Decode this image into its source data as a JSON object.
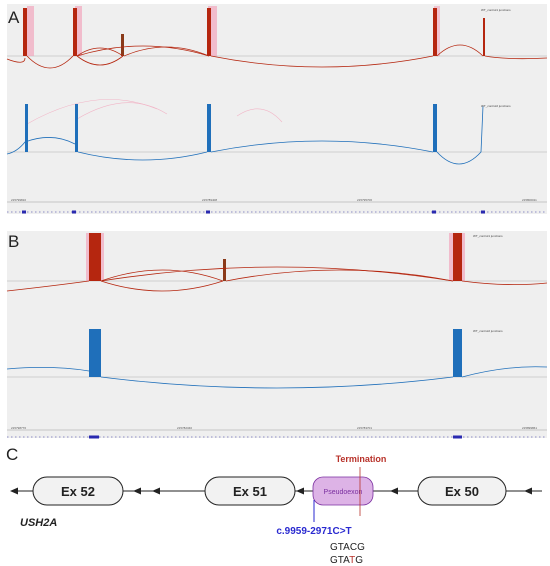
{
  "panels": {
    "a": {
      "letter": "A",
      "track_top_label": "WT_control1 junctions",
      "track_bottom_label": "WT_control2 junctions",
      "ticks": [
        "215799810",
        "215789408",
        "215795706",
        "215800011"
      ]
    },
    "b": {
      "letter": "B",
      "track_top_label": "WT_control1 junctions",
      "track_bottom_label": "WT_control2 junctions",
      "ticks": [
        "215798776",
        "215782340",
        "215783701",
        "215899861"
      ]
    },
    "c": {
      "letter": "C",
      "gene": "USH2A",
      "exons": [
        {
          "label": "Ex 52"
        },
        {
          "label": "Ex 51"
        },
        {
          "label": "Pseudoexon"
        },
        {
          "label": "Ex 50"
        }
      ],
      "termination_label": "Termination",
      "variant_label": "c.9959-2971C>T",
      "seq_wt": {
        "prefix": "GTA",
        "base": "C",
        "suffix": "G"
      },
      "seq_mut": {
        "prefix": "GTA",
        "base": "T",
        "suffix": "G"
      }
    }
  },
  "colors": {
    "red": "#b5260f",
    "pink": "#f2a7bd",
    "blue": "#1f6fba",
    "pseudoexon_fill": "#ddb3e6",
    "pseudoexon_text": "#7a2fa0",
    "variant": "#2a2ad0",
    "termination": "#b8322a"
  }
}
